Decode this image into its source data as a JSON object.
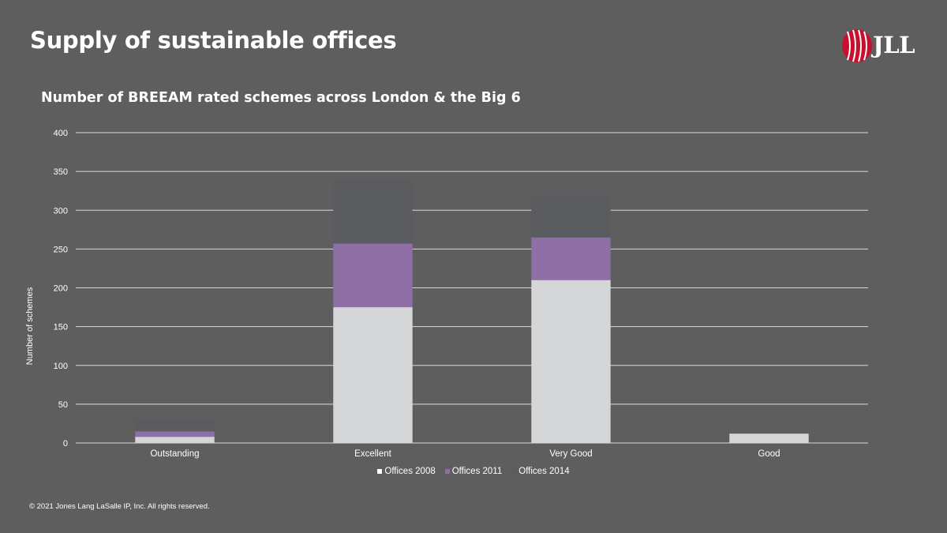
{
  "slide": {
    "title": "Supply of sustainable offices",
    "footer": "© 2021 Jones Lang LaSalle IP, Inc. All rights reserved.",
    "logo": {
      "text": "JLL",
      "icon": "jll-helix-logo-icon",
      "color": "#c8102e"
    }
  },
  "colors": {
    "background": "#5e5e5f",
    "gridline": "#d9d9d9"
  },
  "chart_data": {
    "type": "bar",
    "stacked": true,
    "title": "Number of BREEAM rated schemes across London & the Big 6",
    "xlabel": "",
    "ylabel": "Number of schemes",
    "ylim": [
      0,
      400
    ],
    "yticks": [
      0,
      50,
      100,
      150,
      200,
      250,
      300,
      350,
      400
    ],
    "grid": true,
    "legend_position": "bottom",
    "categories": [
      "Outstanding",
      "Excellent",
      "Very Good",
      "Good"
    ],
    "series": [
      {
        "name": "Offices 2008",
        "color": "#d5d6d8",
        "values": [
          8,
          175,
          210,
          12
        ]
      },
      {
        "name": "Offices 2011",
        "color": "#8e6fa6",
        "values": [
          7,
          82,
          55,
          0
        ]
      },
      {
        "name": "Offices 2014",
        "color": "#5a5c60",
        "values": [
          15,
          81,
          55,
          0
        ]
      }
    ]
  }
}
